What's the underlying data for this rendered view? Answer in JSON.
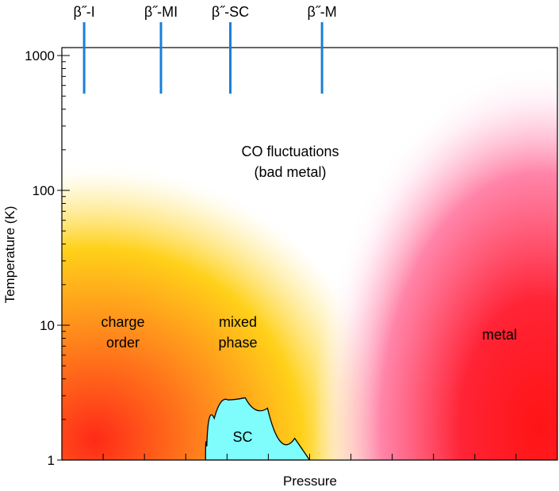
{
  "chart_data": {
    "type": "phase-diagram",
    "title": "",
    "xlabel": "Pressure",
    "ylabel": "Temperature (K)",
    "yscale": "log",
    "ylim": [
      1,
      1600
    ],
    "yticks": [
      {
        "value": 1,
        "label": "1"
      },
      {
        "value": 10,
        "label": "10"
      },
      {
        "value": 100,
        "label": "100"
      },
      {
        "value": 1000,
        "label": "1000"
      }
    ],
    "x_tick_count": 12,
    "compounds": [
      {
        "label": "β˝-I",
        "pressure_fraction": 0.045
      },
      {
        "label": "β˝-MI",
        "pressure_fraction": 0.2
      },
      {
        "label": "β˝-SC",
        "pressure_fraction": 0.34
      },
      {
        "label": "β˝-M",
        "pressure_fraction": 0.525
      }
    ],
    "regions": {
      "charge_order": {
        "line1": "charge",
        "line2": "order"
      },
      "mixed_phase": {
        "line1": "mixed",
        "line2": "phase"
      },
      "co_fluctuations": {
        "line1": "CO fluctuations",
        "line2": "(bad metal)"
      },
      "metal": {
        "label": "metal"
      },
      "superconductor": {
        "label": "SC",
        "boundary": [
          {
            "p": 0.29,
            "t": 1
          },
          {
            "p": 0.295,
            "t": 1.6
          },
          {
            "p": 0.32,
            "t": 2.6
          },
          {
            "p": 0.35,
            "t": 3.0
          },
          {
            "p": 0.39,
            "t": 2.8
          },
          {
            "p": 0.44,
            "t": 2.1
          },
          {
            "p": 0.5,
            "t": 1.0
          }
        ]
      }
    },
    "colors": {
      "compound_line": "#1a7fd8",
      "sc_fill": "#7ffcfc",
      "co_core": "#ff2a18",
      "co_mid": "#ffd11a",
      "co_edge": "#fff8d8",
      "metal_core": "#ff1414",
      "metal_mid": "#ff6f9a",
      "metal_edge": "#ffe4f0"
    }
  }
}
